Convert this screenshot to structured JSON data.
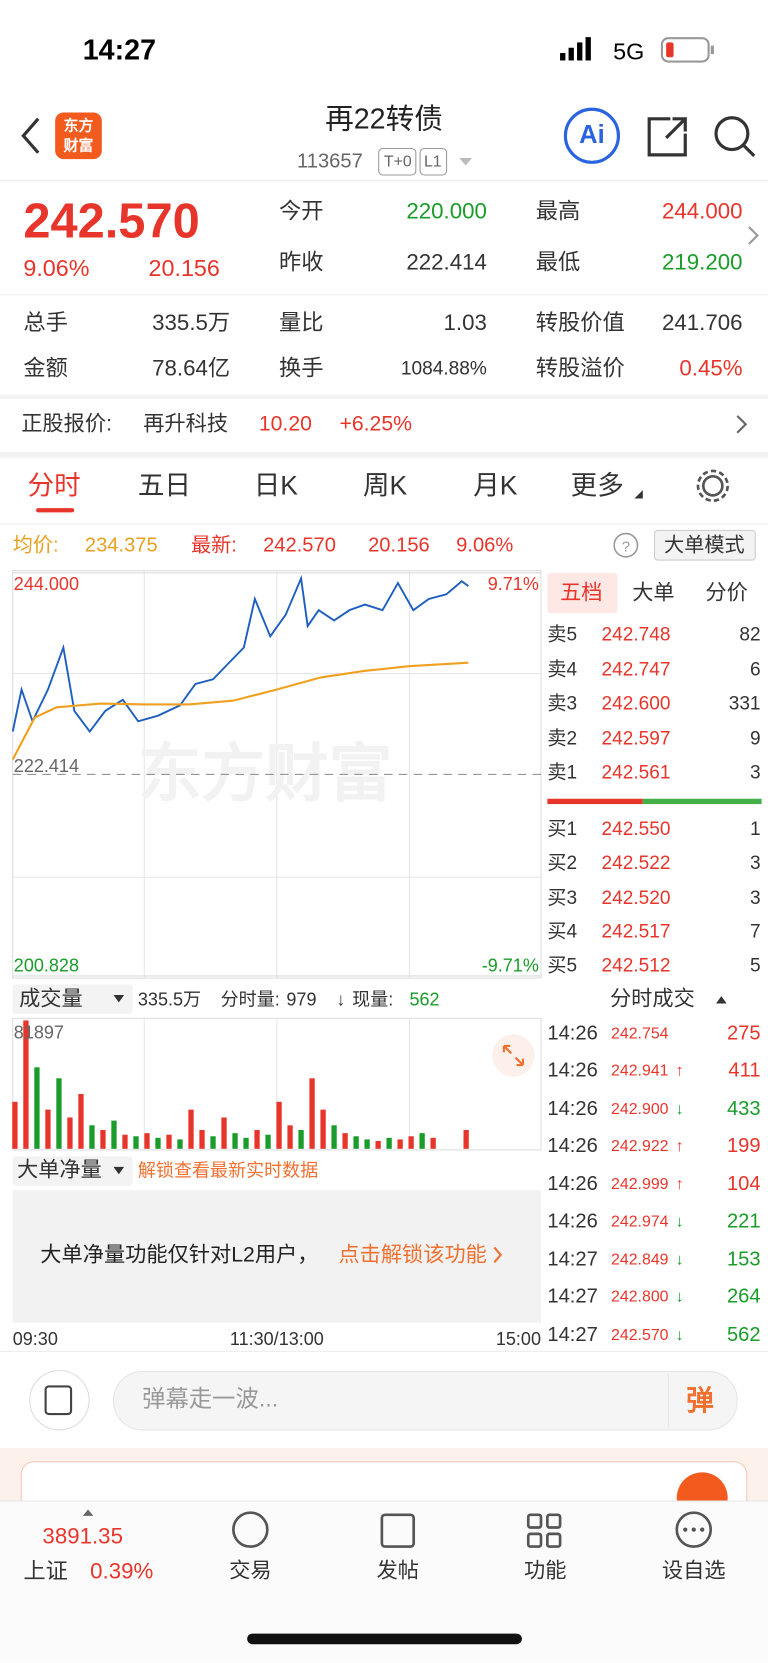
{
  "status": {
    "time": "14:27",
    "network": "5G"
  },
  "header": {
    "logo": [
      "东方",
      "财富"
    ],
    "title": "再22转债",
    "code": "113657",
    "tags": [
      "T+0",
      "L1"
    ],
    "ai": "Ai"
  },
  "quote": {
    "price": "242.570",
    "percent": "9.06%",
    "change": "20.156",
    "fields": [
      {
        "label": "今开",
        "value": "220.000"
      },
      {
        "label": "最高",
        "value": "244.000"
      },
      {
        "label": "昨收",
        "value": "222.414"
      },
      {
        "label": "最低",
        "value": "219.200"
      },
      {
        "label": "总手",
        "value": "335.5万"
      },
      {
        "label": "量比",
        "value": "1.03"
      },
      {
        "label": "转股价值",
        "value": "241.706"
      },
      {
        "label": "金额",
        "value": "78.64亿"
      },
      {
        "label": "换手",
        "value": "1084.88%"
      },
      {
        "label": "转股溢价",
        "value": "0.45%"
      }
    ]
  },
  "stock": {
    "label": "正股报价:",
    "name": "再升科技",
    "price": "10.20",
    "percent": "+6.25%"
  },
  "tabs": [
    "分时",
    "五日",
    "日K",
    "周K",
    "月K",
    "更多"
  ],
  "info": {
    "avg_label": "均价:",
    "avg": "234.375",
    "latest_label": "最新:",
    "latest": "242.570",
    "change": "20.156",
    "percent": "9.06%",
    "mode": "大单模式"
  },
  "chart_data": [
    {
      "type": "line",
      "xlim": [
        0,
        240
      ],
      "xticks": [
        {
          "value": 0,
          "label": "09:30"
        },
        {
          "value": 120,
          "label": "11:30/13:00"
        },
        {
          "value": 240,
          "label": "15:00"
        }
      ],
      "ylim": [
        200.828,
        244.0
      ],
      "yticks": [
        {
          "value": 244.0,
          "label": "244.000"
        },
        {
          "value": 222.414,
          "label": "222.414"
        },
        {
          "value": 200.828,
          "label": "200.828"
        }
      ],
      "y2lim": [
        -9.71,
        9.71
      ],
      "y2ticks": [
        {
          "value": 9.71,
          "label": "9.71%"
        },
        {
          "value": -9.71,
          "label": "-9.71%"
        }
      ],
      "series": [
        {
          "color": "#1f5fbf",
          "x": [
            0,
            4,
            9,
            16,
            23,
            28,
            35,
            42,
            50,
            57,
            66,
            76,
            83,
            91,
            98,
            105,
            110,
            117,
            124,
            131,
            134,
            139,
            146,
            153,
            160,
            168,
            175,
            182,
            189,
            197,
            204,
            207
          ],
          "values": [
            227.0,
            231.5,
            228.1,
            231.5,
            236.0,
            229.2,
            227.0,
            229.2,
            230.4,
            228.1,
            228.7,
            229.8,
            232.1,
            232.6,
            234.3,
            236.0,
            241.2,
            237.2,
            239.5,
            243.4,
            238.3,
            240.0,
            238.9,
            240.0,
            240.6,
            240.0,
            242.9,
            240.0,
            241.2,
            241.7,
            243.1,
            242.57
          ]
        },
        {
          "color": "#f0a020",
          "x": [
            0,
            10,
            20,
            40,
            60,
            80,
            100,
            120,
            140,
            160,
            180,
            207
          ],
          "values": [
            224.0,
            228.5,
            229.6,
            230.0,
            229.9,
            229.9,
            230.3,
            231.5,
            232.8,
            233.5,
            234.0,
            234.375
          ]
        }
      ]
    },
    {
      "type": "bar",
      "xlim": [
        0,
        240
      ],
      "ylim": [
        0,
        81897
      ],
      "yticks": [
        81897
      ],
      "x": [
        1,
        6,
        11,
        16,
        21,
        26,
        31,
        36,
        41,
        46,
        51,
        56,
        61,
        66,
        71,
        76,
        81,
        86,
        91,
        96,
        101,
        106,
        111,
        116,
        121,
        126,
        131,
        136,
        141,
        146,
        151,
        156,
        161,
        166,
        171,
        176,
        181,
        186,
        191,
        206
      ],
      "values": [
        30000,
        81897,
        52000,
        25000,
        45000,
        20000,
        35000,
        15000,
        12000,
        18000,
        9000,
        8000,
        10000,
        7000,
        9000,
        6000,
        25000,
        12000,
        8000,
        20000,
        10000,
        7000,
        12000,
        9000,
        30000,
        15000,
        12000,
        45000,
        25000,
        15000,
        10000,
        8000,
        6000,
        5000,
        7000,
        6000,
        8000,
        10000,
        7000,
        12000
      ],
      "colors": [
        "#e8352b",
        "#e8352b",
        "#1a9c2a",
        "#e8352b",
        "#1a9c2a",
        "#e8352b",
        "#e8352b",
        "#1a9c2a",
        "#e8352b",
        "#1a9c2a",
        "#e8352b",
        "#1a9c2a",
        "#e8352b",
        "#1a9c2a",
        "#e8352b",
        "#1a9c2a",
        "#e8352b",
        "#e8352b",
        "#1a9c2a",
        "#e8352b",
        "#1a9c2a",
        "#1a9c2a",
        "#e8352b",
        "#1a9c2a",
        "#e8352b",
        "#e8352b",
        "#1a9c2a",
        "#e8352b",
        "#e8352b",
        "#1a9c2a",
        "#e8352b",
        "#1a9c2a",
        "#1a9c2a",
        "#e8352b",
        "#1a9c2a",
        "#e8352b",
        "#e8352b",
        "#1a9c2a",
        "#e8352b",
        "#e8352b"
      ]
    }
  ],
  "orderbook": {
    "tabs": [
      "五档",
      "大单",
      "分价"
    ],
    "asks": [
      {
        "label": "卖5",
        "price": "242.748",
        "volume": "82"
      },
      {
        "label": "卖4",
        "price": "242.747",
        "volume": "6"
      },
      {
        "label": "卖3",
        "price": "242.600",
        "volume": "331"
      },
      {
        "label": "卖2",
        "price": "242.597",
        "volume": "9"
      },
      {
        "label": "卖1",
        "price": "242.561",
        "volume": "3"
      }
    ],
    "bids": [
      {
        "label": "买1",
        "price": "242.550",
        "volume": "1"
      },
      {
        "label": "买2",
        "price": "242.522",
        "volume": "3"
      },
      {
        "label": "买3",
        "price": "242.520",
        "volume": "3"
      },
      {
        "label": "买4",
        "price": "242.517",
        "volume": "7"
      },
      {
        "label": "买5",
        "price": "242.512",
        "volume": "5"
      }
    ]
  },
  "volume": {
    "label": "成交量",
    "total": "335.5万",
    "time_label": "分时量:",
    "time_volume": "979",
    "time_dir": "↓",
    "now_label": "现量:",
    "now_volume": "562"
  },
  "trades": {
    "title": "分时成交",
    "rows": [
      {
        "time": "14:26",
        "price": "242.754",
        "volume": "275"
      },
      {
        "time": "14:26",
        "price": "242.941",
        "dir": "↑",
        "volume": "411"
      },
      {
        "time": "14:26",
        "price": "242.900",
        "dir": "↓",
        "volume": "433"
      },
      {
        "time": "14:26",
        "price": "242.922",
        "dir": "↑",
        "volume": "199"
      },
      {
        "time": "14:26",
        "price": "242.999",
        "dir": "↑",
        "volume": "104"
      },
      {
        "time": "14:26",
        "price": "242.974",
        "dir": "↓",
        "volume": "221"
      },
      {
        "time": "14:27",
        "price": "242.849",
        "dir": "↓",
        "volume": "153"
      },
      {
        "time": "14:27",
        "price": "242.800",
        "dir": "↓",
        "volume": "264"
      },
      {
        "time": "14:27",
        "price": "242.570",
        "dir": "↓",
        "volume": "562"
      }
    ]
  },
  "net": {
    "label": "大单净量",
    "unlock": "解锁查看最新实时数据",
    "message": "大单净量功能仅针对L2用户，",
    "link": "点击解锁该功能"
  },
  "comment": {
    "placeholder": "弹幕走一波...",
    "button": "弹"
  },
  "nav": {
    "index": "3891.35",
    "index_name": "上证",
    "index_percent": "0.39%",
    "items": [
      "交易",
      "发帖",
      "功能",
      "设自选"
    ]
  }
}
